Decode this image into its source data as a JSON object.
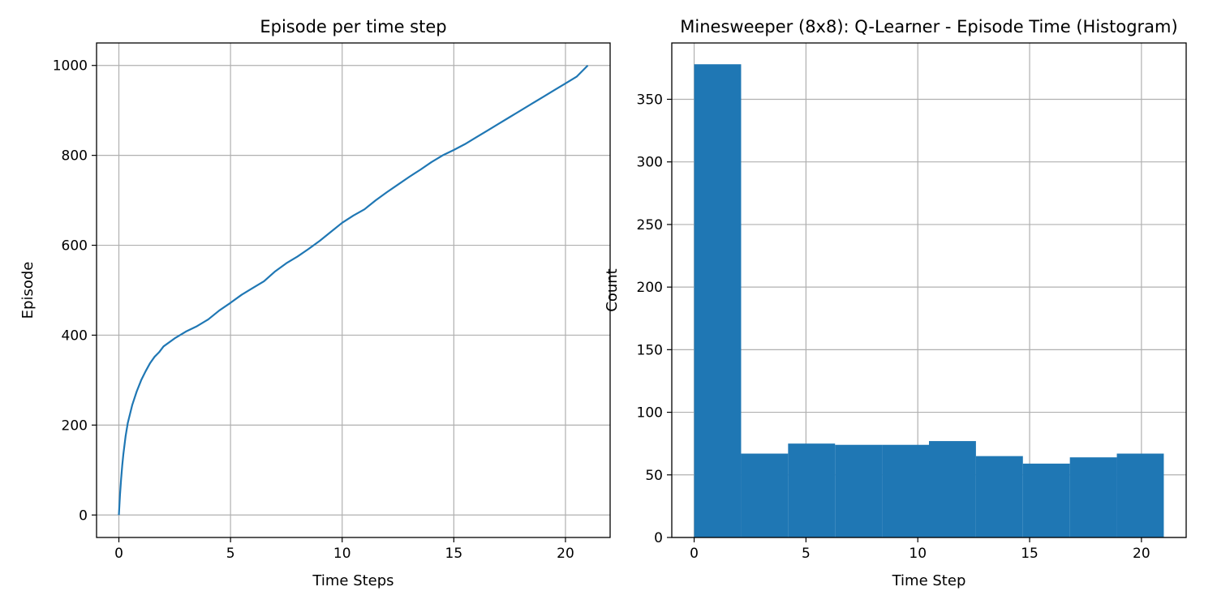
{
  "chart_data": [
    {
      "type": "line",
      "title": "Episode per time step",
      "xlabel": "Time Steps",
      "ylabel": "Episode",
      "xlim": [
        -1,
        22
      ],
      "ylim": [
        -50,
        1050
      ],
      "xticks": [
        0,
        5,
        10,
        15,
        20
      ],
      "yticks": [
        0,
        200,
        400,
        600,
        800,
        1000
      ],
      "grid": true,
      "series": [
        {
          "color": "#1f77b4",
          "x": [
            0,
            0.05,
            0.1,
            0.15,
            0.2,
            0.3,
            0.4,
            0.5,
            0.6,
            0.7,
            0.8,
            1.0,
            1.2,
            1.4,
            1.6,
            1.8,
            2.0,
            2.5,
            3.0,
            3.5,
            4.0,
            4.5,
            5.0,
            5.5,
            6.0,
            6.5,
            7.0,
            7.5,
            8.0,
            8.5,
            9.0,
            9.5,
            10.0,
            10.5,
            11.0,
            11.5,
            12.0,
            12.5,
            13.0,
            13.5,
            14.0,
            14.5,
            15.0,
            15.5,
            16.0,
            16.5,
            17.0,
            17.5,
            18.0,
            18.5,
            19.0,
            19.5,
            20.0,
            20.5,
            21.0
          ],
          "y": [
            0,
            45,
            80,
            110,
            135,
            175,
            205,
            225,
            245,
            260,
            275,
            300,
            320,
            338,
            352,
            362,
            375,
            393,
            408,
            420,
            435,
            455,
            472,
            490,
            505,
            520,
            542,
            560,
            575,
            592,
            610,
            630,
            650,
            666,
            680,
            700,
            718,
            735,
            752,
            768,
            785,
            800,
            812,
            825,
            840,
            855,
            870,
            885,
            900,
            915,
            930,
            945,
            960,
            975,
            1000
          ]
        }
      ]
    },
    {
      "type": "bar",
      "title": "Minesweeper (8x8): Q-Learner - Episode Time (Histogram)",
      "xlabel": "Time Step",
      "ylabel": "Count",
      "xlim": [
        -1,
        22
      ],
      "ylim": [
        0,
        395
      ],
      "xticks": [
        0,
        5,
        10,
        15,
        20
      ],
      "yticks": [
        0,
        50,
        100,
        150,
        200,
        250,
        300,
        350
      ],
      "grid": true,
      "color": "#1f77b4",
      "bin_edges": [
        0,
        2.1,
        4.2,
        6.3,
        8.4,
        10.5,
        12.6,
        14.7,
        16.8,
        18.9,
        21
      ],
      "values": [
        378,
        67,
        75,
        74,
        74,
        77,
        65,
        59,
        64,
        67
      ]
    }
  ]
}
